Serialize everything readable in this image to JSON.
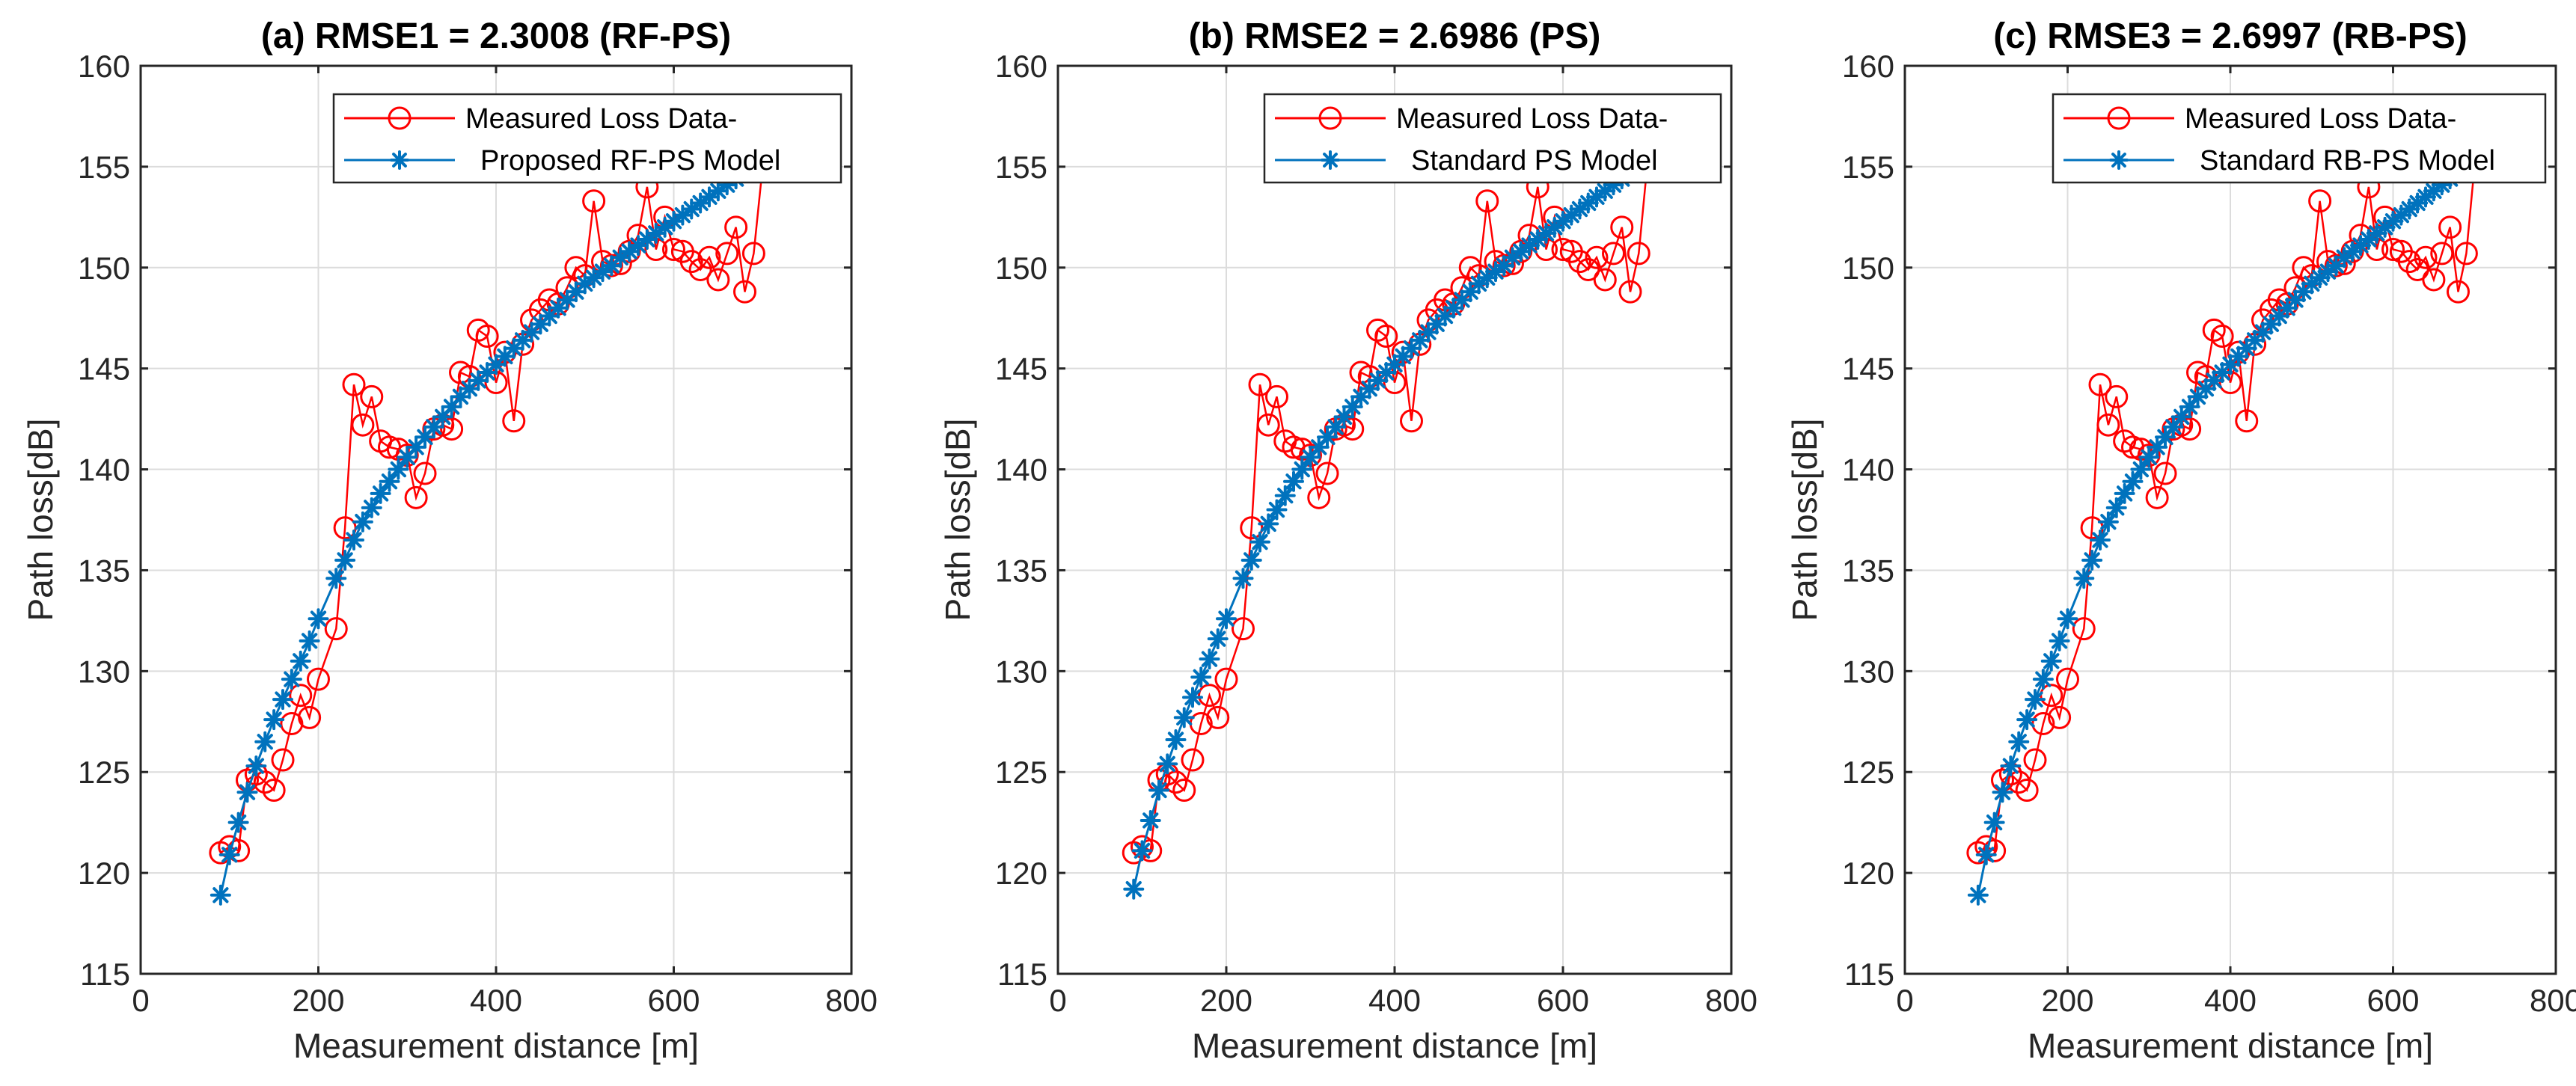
{
  "chart_data": [
    {
      "type": "line",
      "title": "(a) RMSE1 = 2.3008 (RF-PS)",
      "xlabel": "Measurement distance [m]",
      "ylabel": "Path loss[dB]",
      "xlim": [
        0,
        800
      ],
      "ylim": [
        115,
        160
      ],
      "xticks": [
        0,
        200,
        400,
        600,
        800
      ],
      "yticks": [
        115,
        120,
        125,
        130,
        135,
        140,
        145,
        150,
        155,
        160
      ],
      "grid": true,
      "legend_position": "top-right",
      "series": [
        {
          "name": "Measured Loss Data-",
          "color": "#ff0000",
          "marker": "circle",
          "x": [
            90,
            100,
            110,
            120,
            130,
            140,
            150,
            160,
            170,
            180,
            190,
            200,
            220,
            230,
            240,
            250,
            260,
            270,
            280,
            290,
            300,
            310,
            320,
            330,
            340,
            350,
            360,
            370,
            380,
            390,
            400,
            410,
            420,
            430,
            440,
            450,
            460,
            470,
            480,
            490,
            500,
            510,
            520,
            530,
            540,
            550,
            560,
            570,
            580,
            590,
            600,
            610,
            620,
            630,
            640,
            650,
            660,
            670,
            680,
            690,
            700
          ],
          "y": [
            121.0,
            121.3,
            121.1,
            124.6,
            124.9,
            124.5,
            124.1,
            125.6,
            127.4,
            128.8,
            127.7,
            129.6,
            132.1,
            137.1,
            144.2,
            142.2,
            143.6,
            141.4,
            141.1,
            141.0,
            140.7,
            138.6,
            139.8,
            142.0,
            142.2,
            142.0,
            144.8,
            144.6,
            146.9,
            146.6,
            144.3,
            145.8,
            142.4,
            146.2,
            147.4,
            147.9,
            148.4,
            148.2,
            149.0,
            150.0,
            149.6,
            153.3,
            150.3,
            150.1,
            150.2,
            150.8,
            151.6,
            154.0,
            150.9,
            152.5,
            150.9,
            150.8,
            150.3,
            149.9,
            150.5,
            149.4,
            150.7,
            152.0,
            148.8,
            150.7,
            155.0
          ]
        },
        {
          "name": "Proposed RF-PS Model",
          "color": "#0072bd",
          "marker": "asterisk",
          "x": [
            90,
            100,
            110,
            120,
            130,
            140,
            150,
            160,
            170,
            180,
            190,
            200,
            220,
            230,
            240,
            250,
            260,
            270,
            280,
            290,
            300,
            310,
            320,
            330,
            340,
            350,
            360,
            370,
            380,
            390,
            400,
            410,
            420,
            430,
            440,
            450,
            460,
            470,
            480,
            490,
            500,
            510,
            520,
            530,
            540,
            550,
            560,
            570,
            580,
            590,
            600,
            610,
            620,
            630,
            640,
            650,
            660,
            670,
            680,
            690
          ],
          "y": [
            118.9,
            120.9,
            122.5,
            124.0,
            125.3,
            126.5,
            127.6,
            128.6,
            129.6,
            130.5,
            131.5,
            132.6,
            134.6,
            135.5,
            136.5,
            137.4,
            138.1,
            138.8,
            139.4,
            140.0,
            140.6,
            141.1,
            141.6,
            142.1,
            142.6,
            143.1,
            143.6,
            144.0,
            144.4,
            144.8,
            145.2,
            145.6,
            146.0,
            146.4,
            146.8,
            147.2,
            147.6,
            148.0,
            148.4,
            148.8,
            149.2,
            149.5,
            149.8,
            150.1,
            150.5,
            150.8,
            151.1,
            151.4,
            151.7,
            152.0,
            152.3,
            152.6,
            152.9,
            153.2,
            153.5,
            153.8,
            154.1,
            154.4,
            154.7,
            155.0
          ]
        }
      ]
    },
    {
      "type": "line",
      "title": "(b) RMSE2 = 2.6986 (PS)",
      "xlabel": "Measurement distance [m]",
      "ylabel": "Path loss[dB]",
      "xlim": [
        0,
        800
      ],
      "ylim": [
        115,
        160
      ],
      "xticks": [
        0,
        200,
        400,
        600,
        800
      ],
      "yticks": [
        115,
        120,
        125,
        130,
        135,
        140,
        145,
        150,
        155,
        160
      ],
      "grid": true,
      "legend_position": "top-right",
      "series": [
        {
          "name": "Measured Loss Data-",
          "color": "#ff0000",
          "marker": "circle",
          "x": [
            90,
            100,
            110,
            120,
            130,
            140,
            150,
            160,
            170,
            180,
            190,
            200,
            220,
            230,
            240,
            250,
            260,
            270,
            280,
            290,
            300,
            310,
            320,
            330,
            340,
            350,
            360,
            370,
            380,
            390,
            400,
            410,
            420,
            430,
            440,
            450,
            460,
            470,
            480,
            490,
            500,
            510,
            520,
            530,
            540,
            550,
            560,
            570,
            580,
            590,
            600,
            610,
            620,
            630,
            640,
            650,
            660,
            670,
            680,
            690,
            700
          ],
          "y": [
            121.0,
            121.3,
            121.1,
            124.6,
            124.9,
            124.5,
            124.1,
            125.6,
            127.4,
            128.8,
            127.7,
            129.6,
            132.1,
            137.1,
            144.2,
            142.2,
            143.6,
            141.4,
            141.1,
            141.0,
            140.7,
            138.6,
            139.8,
            142.0,
            142.2,
            142.0,
            144.8,
            144.6,
            146.9,
            146.6,
            144.3,
            145.8,
            142.4,
            146.2,
            147.4,
            147.9,
            148.4,
            148.2,
            149.0,
            150.0,
            149.6,
            153.3,
            150.3,
            150.1,
            150.2,
            150.8,
            151.6,
            154.0,
            150.9,
            152.5,
            150.9,
            150.8,
            150.3,
            149.9,
            150.5,
            149.4,
            150.7,
            152.0,
            148.8,
            150.7,
            155.0
          ]
        },
        {
          "name": "Standard PS Model",
          "color": "#0072bd",
          "marker": "asterisk",
          "x": [
            90,
            100,
            110,
            120,
            130,
            140,
            150,
            160,
            170,
            180,
            190,
            200,
            220,
            230,
            240,
            250,
            260,
            270,
            280,
            290,
            300,
            310,
            320,
            330,
            340,
            350,
            360,
            370,
            380,
            390,
            400,
            410,
            420,
            430,
            440,
            450,
            460,
            470,
            480,
            490,
            500,
            510,
            520,
            530,
            540,
            550,
            560,
            570,
            580,
            590,
            600,
            610,
            620,
            630,
            640,
            650,
            660,
            670,
            680,
            690
          ],
          "y": [
            119.2,
            121.1,
            122.6,
            124.1,
            125.4,
            126.6,
            127.7,
            128.7,
            129.7,
            130.6,
            131.6,
            132.6,
            134.6,
            135.5,
            136.4,
            137.3,
            138.0,
            138.7,
            139.4,
            140.0,
            140.6,
            141.1,
            141.6,
            142.1,
            142.6,
            143.1,
            143.6,
            144.0,
            144.4,
            144.8,
            145.2,
            145.6,
            146.0,
            146.4,
            146.8,
            147.2,
            147.6,
            148.0,
            148.4,
            148.8,
            149.2,
            149.5,
            149.8,
            150.1,
            150.5,
            150.8,
            151.1,
            151.4,
            151.7,
            152.0,
            152.3,
            152.6,
            152.9,
            153.2,
            153.5,
            153.8,
            154.1,
            154.4,
            154.7,
            155.0
          ]
        }
      ]
    },
    {
      "type": "line",
      "title": "(c) RMSE3 = 2.6997 (RB-PS)",
      "xlabel": "Measurement distance [m]",
      "ylabel": "Path loss[dB]",
      "xlim": [
        0,
        800
      ],
      "ylim": [
        115,
        160
      ],
      "xticks": [
        0,
        200,
        400,
        600,
        800
      ],
      "yticks": [
        115,
        120,
        125,
        130,
        135,
        140,
        145,
        150,
        155,
        160
      ],
      "grid": true,
      "legend_position": "top-right",
      "series": [
        {
          "name": "Measured Loss Data-",
          "color": "#ff0000",
          "marker": "circle",
          "x": [
            90,
            100,
            110,
            120,
            130,
            140,
            150,
            160,
            170,
            180,
            190,
            200,
            220,
            230,
            240,
            250,
            260,
            270,
            280,
            290,
            300,
            310,
            320,
            330,
            340,
            350,
            360,
            370,
            380,
            390,
            400,
            410,
            420,
            430,
            440,
            450,
            460,
            470,
            480,
            490,
            500,
            510,
            520,
            530,
            540,
            550,
            560,
            570,
            580,
            590,
            600,
            610,
            620,
            630,
            640,
            650,
            660,
            670,
            680,
            690,
            700
          ],
          "y": [
            121.0,
            121.3,
            121.1,
            124.6,
            124.9,
            124.5,
            124.1,
            125.6,
            127.4,
            128.8,
            127.7,
            129.6,
            132.1,
            137.1,
            144.2,
            142.2,
            143.6,
            141.4,
            141.1,
            141.0,
            140.7,
            138.6,
            139.8,
            142.0,
            142.2,
            142.0,
            144.8,
            144.6,
            146.9,
            146.6,
            144.3,
            145.8,
            142.4,
            146.2,
            147.4,
            147.9,
            148.4,
            148.2,
            149.0,
            150.0,
            149.6,
            153.3,
            150.3,
            150.1,
            150.2,
            150.8,
            151.6,
            154.0,
            150.9,
            152.5,
            150.9,
            150.8,
            150.3,
            149.9,
            150.5,
            149.4,
            150.7,
            152.0,
            148.8,
            150.7,
            155.0
          ]
        },
        {
          "name": "Standard RB-PS Model",
          "color": "#0072bd",
          "marker": "asterisk",
          "x": [
            90,
            100,
            110,
            120,
            130,
            140,
            150,
            160,
            170,
            180,
            190,
            200,
            220,
            230,
            240,
            250,
            260,
            270,
            280,
            290,
            300,
            310,
            320,
            330,
            340,
            350,
            360,
            370,
            380,
            390,
            400,
            410,
            420,
            430,
            440,
            450,
            460,
            470,
            480,
            490,
            500,
            510,
            520,
            530,
            540,
            550,
            560,
            570,
            580,
            590,
            600,
            610,
            620,
            630,
            640,
            650,
            660,
            670,
            680,
            690
          ],
          "y": [
            118.9,
            120.9,
            122.5,
            124.0,
            125.3,
            126.5,
            127.6,
            128.6,
            129.6,
            130.5,
            131.5,
            132.6,
            134.6,
            135.5,
            136.5,
            137.4,
            138.1,
            138.8,
            139.4,
            140.0,
            140.6,
            141.1,
            141.6,
            142.1,
            142.6,
            143.1,
            143.6,
            144.0,
            144.4,
            144.8,
            145.2,
            145.6,
            146.0,
            146.4,
            146.8,
            147.2,
            147.6,
            148.0,
            148.4,
            148.8,
            149.2,
            149.5,
            149.8,
            150.1,
            150.5,
            150.8,
            151.1,
            151.4,
            151.7,
            152.0,
            152.3,
            152.6,
            152.9,
            153.2,
            153.5,
            153.8,
            154.1,
            154.4,
            154.7,
            155.0
          ]
        }
      ]
    }
  ]
}
